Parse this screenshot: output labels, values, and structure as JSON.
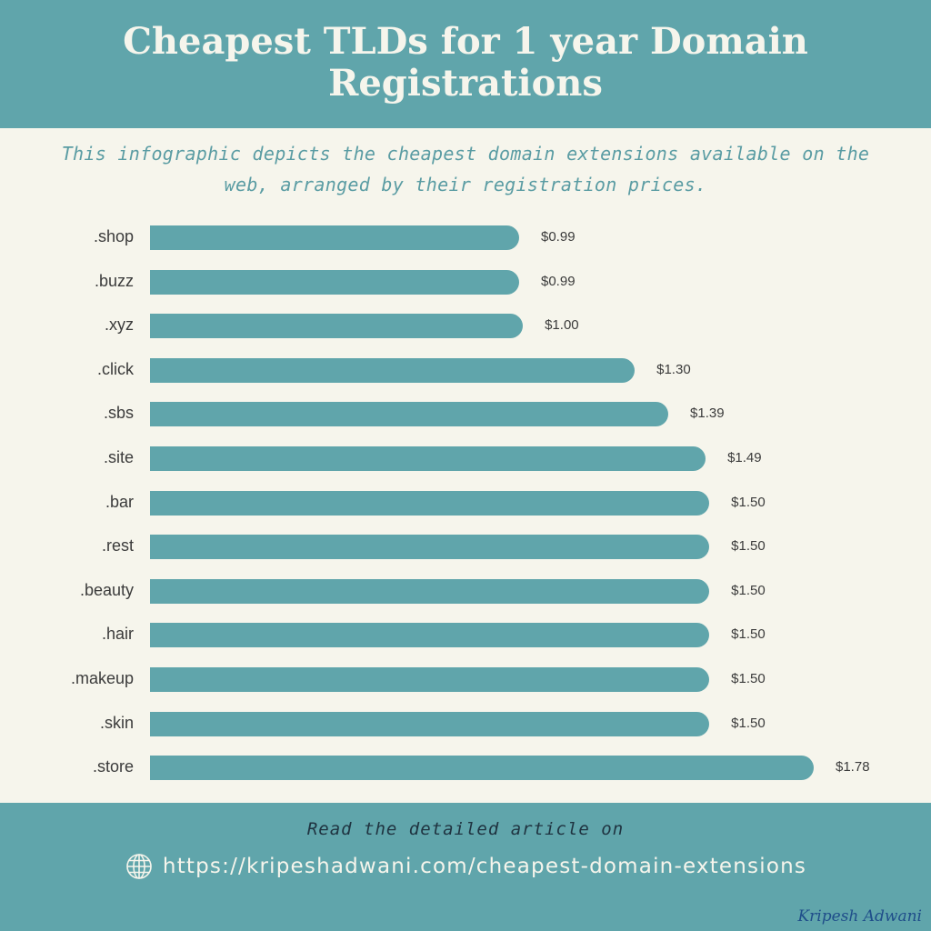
{
  "header": {
    "title": "Cheapest TLDs for 1 year Domain Registrations"
  },
  "subtitle": "This infographic depicts the cheapest domain extensions available on the web, arranged by their registration prices.",
  "footer": {
    "lead": "Read the detailed article on",
    "icon": "globe-icon",
    "url": "https://kripeshadwani.com/cheapest-domain-extensions",
    "signature": "Kripesh Adwani"
  },
  "colors": {
    "accent": "#60a5ab",
    "background": "#f6f5ec",
    "text": "#3b3b3b"
  },
  "rows": [
    {
      "label": ".shop",
      "value": "$0.99"
    },
    {
      "label": ".buzz",
      "value": "$0.99"
    },
    {
      "label": ".xyz",
      "value": "$1.00"
    },
    {
      "label": ".click",
      "value": "$1.30"
    },
    {
      "label": ".sbs",
      "value": "$1.39"
    },
    {
      "label": ".site",
      "value": "$1.49"
    },
    {
      "label": ".bar",
      "value": "$1.50"
    },
    {
      "label": ".rest",
      "value": "$1.50"
    },
    {
      "label": ".beauty",
      "value": "$1.50"
    },
    {
      "label": ".hair",
      "value": "$1.50"
    },
    {
      "label": ".makeup",
      "value": "$1.50"
    },
    {
      "label": ".skin",
      "value": "$1.50"
    },
    {
      "label": ".store",
      "value": "$1.78"
    }
  ],
  "chart_data": {
    "type": "bar",
    "orientation": "horizontal",
    "title": "Cheapest TLDs for 1 year Domain Registrations",
    "subtitle": "This infographic depicts the cheapest domain extensions available on the web, arranged by their registration prices.",
    "categories": [
      ".shop",
      ".buzz",
      ".xyz",
      ".click",
      ".sbs",
      ".site",
      ".bar",
      ".rest",
      ".beauty",
      ".hair",
      ".makeup",
      ".skin",
      ".store"
    ],
    "values": [
      0.99,
      0.99,
      1.0,
      1.3,
      1.39,
      1.49,
      1.5,
      1.5,
      1.5,
      1.5,
      1.5,
      1.5,
      1.78
    ],
    "value_labels": [
      "$0.99",
      "$0.99",
      "$1.00",
      "$1.30",
      "$1.39",
      "$1.49",
      "$1.50",
      "$1.50",
      "$1.50",
      "$1.50",
      "$1.50",
      "$1.50",
      "$1.78"
    ],
    "xlabel": "",
    "ylabel": "",
    "grid": false,
    "legend": null,
    "color": "#60a5ab"
  }
}
